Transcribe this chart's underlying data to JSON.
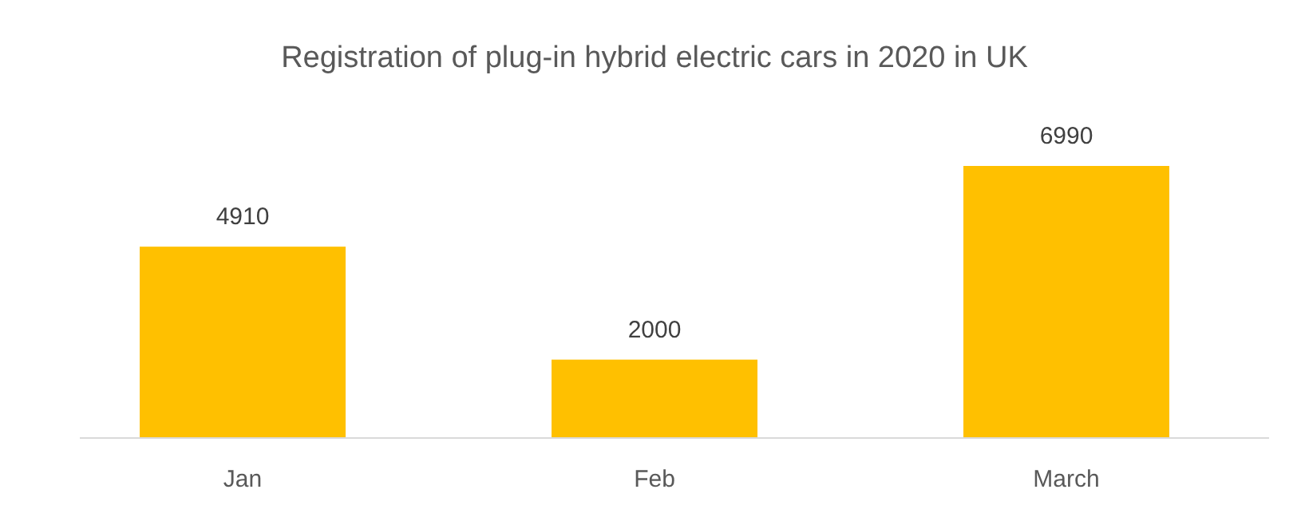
{
  "chart_data": {
    "type": "bar",
    "title": "Registration of plug-in hybrid electric cars in 2020 in UK",
    "categories": [
      "Jan",
      "Feb",
      "March"
    ],
    "values": [
      4910,
      2000,
      6990
    ],
    "color": "#ffc000",
    "data_labels": true
  }
}
